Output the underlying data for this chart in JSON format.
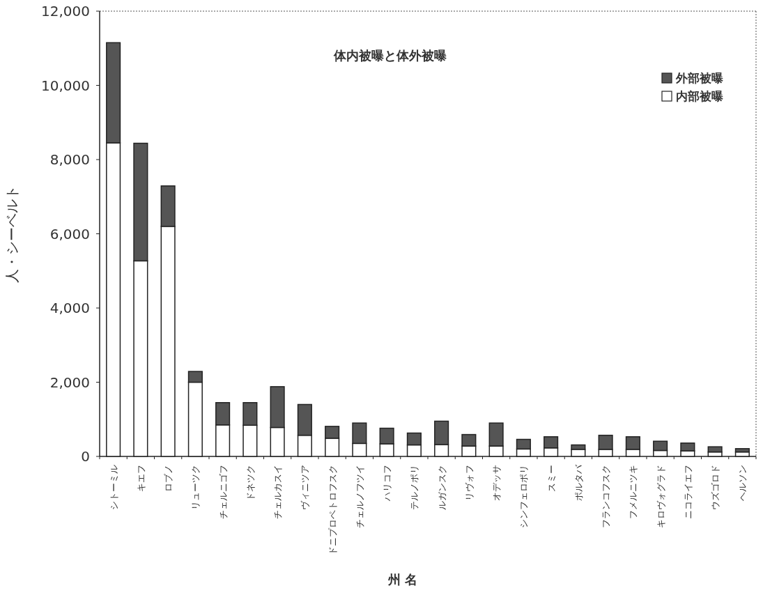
{
  "chart_data": {
    "type": "bar",
    "title": "体内被曝と体外被曝",
    "xlabel": "州 名",
    "ylabel": "人・シーベルト",
    "categories": [
      "シトーミル",
      "キエフ",
      "ロブノ",
      "リューツク",
      "チェルニゴフ",
      "ドネツク",
      "チェルカスイ",
      "ヴィニツア",
      "ドニプロペトロフスク",
      "チェルノフツイ",
      "ハリコフ",
      "テルノポリ",
      "ルガンスク",
      "リヴォフ",
      "オデッサ",
      "シンフェロポリ",
      "スミー",
      "ポルタバ",
      "フランコフスク",
      "フメルニツキ",
      "キロヴォグラド",
      "ニコライエフ",
      "ウズゴロド",
      "ヘルソン"
    ],
    "stacked": true,
    "series": [
      {
        "name": "内部被曝",
        "color": "#ffffff",
        "values": [
          8450,
          5270,
          6200,
          2000,
          850,
          840,
          780,
          570,
          490,
          350,
          340,
          310,
          320,
          280,
          280,
          200,
          230,
          190,
          190,
          190,
          160,
          150,
          120,
          120
        ]
      },
      {
        "name": "外部被曝",
        "color": "#555555",
        "values": [
          2700,
          3170,
          1090,
          290,
          600,
          610,
          1100,
          830,
          320,
          550,
          420,
          320,
          630,
          310,
          620,
          260,
          300,
          120,
          380,
          340,
          250,
          210,
          140,
          90
        ]
      }
    ],
    "ylim": [
      0,
      12000
    ],
    "yticks": [
      0,
      {
        "value": 2000,
        "label": "2,000"
      },
      {
        "value": 4000,
        "label": "4,000"
      },
      {
        "value": 6000,
        "label": "6,000"
      },
      {
        "value": 8000,
        "label": "8,000"
      },
      {
        "value": 10000,
        "label": "10,000"
      },
      {
        "value": 12000,
        "label": "12,000"
      }
    ],
    "legend": "top right",
    "grid": false
  }
}
